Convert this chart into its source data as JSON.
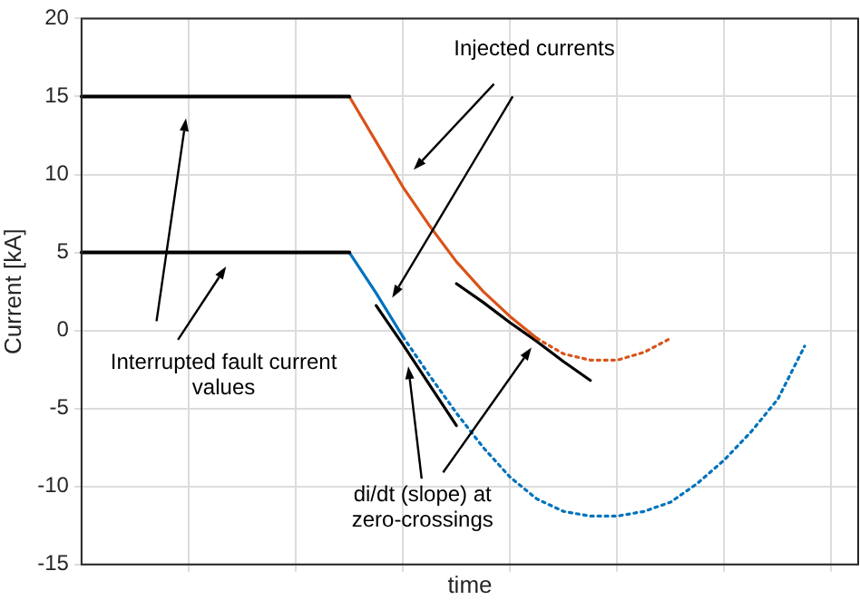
{
  "chart_data": {
    "type": "line",
    "xlabel": "time",
    "ylabel": "Current [kA]",
    "categories": [
      null,
      null,
      null,
      null,
      null,
      null,
      null,
      null,
      null,
      null,
      null,
      null,
      null,
      null,
      null,
      null,
      null,
      null,
      null,
      null,
      null,
      null,
      null,
      null,
      null,
      null,
      null,
      null,
      null,
      null
    ],
    "ylim": [
      -15,
      20
    ],
    "yticks": [
      -15,
      -10,
      -5,
      0,
      5,
      10,
      15,
      20
    ],
    "tick_labels": "y",
    "grid": true,
    "legend": false,
    "marker": "none",
    "series": [
      {
        "color": "#000000",
        "line_style": "solid",
        "values": [
          15,
          15,
          15,
          15,
          15,
          15,
          15,
          15,
          15,
          15,
          15,
          null,
          null,
          null,
          null,
          null,
          null,
          null,
          null,
          null,
          null,
          null,
          null,
          null,
          null,
          null,
          null,
          null,
          null,
          null
        ]
      },
      {
        "color": "#000000",
        "line_style": "solid",
        "values": [
          5,
          5,
          5,
          5,
          5,
          5,
          5,
          5,
          5,
          5,
          5,
          null,
          null,
          null,
          null,
          null,
          null,
          null,
          null,
          null,
          null,
          null,
          null,
          null,
          null,
          null,
          null,
          null,
          null,
          null
        ]
      },
      {
        "color": "#d95319",
        "line_style": "solid",
        "values": [
          null,
          null,
          null,
          null,
          null,
          null,
          null,
          null,
          null,
          null,
          15,
          12.1,
          9.2,
          6.7,
          4.4,
          2.5,
          0.9,
          -0.5,
          null,
          null,
          null,
          null,
          null,
          null,
          null,
          null,
          null,
          null,
          null,
          null
        ]
      },
      {
        "color": "#d95319",
        "line_style": "dotted",
        "values": [
          null,
          null,
          null,
          null,
          null,
          null,
          null,
          null,
          null,
          null,
          null,
          null,
          null,
          null,
          null,
          null,
          null,
          -0.5,
          -1.5,
          -1.9,
          -1.9,
          -1.4,
          -0.5,
          null,
          null,
          null,
          null,
          null,
          null,
          null
        ]
      },
      {
        "color": "#0072bd",
        "line_style": "solid",
        "values": [
          null,
          null,
          null,
          null,
          null,
          null,
          null,
          null,
          null,
          null,
          5,
          2.4,
          -0.4,
          null,
          null,
          null,
          null,
          null,
          null,
          null,
          null,
          null,
          null,
          null,
          null,
          null,
          null,
          null,
          null,
          null
        ]
      },
      {
        "color": "#0072bd",
        "line_style": "dotted",
        "values": [
          null,
          null,
          null,
          null,
          null,
          null,
          null,
          null,
          null,
          null,
          null,
          null,
          -0.4,
          -2.9,
          -5.3,
          -7.5,
          -9.4,
          -10.8,
          -11.6,
          -11.9,
          -11.9,
          -11.6,
          -11,
          -9.8,
          -8.3,
          -6.5,
          -4.4,
          -1,
          null,
          null
        ]
      },
      {
        "color": "#000000",
        "line_style": "solid",
        "values": [
          null,
          null,
          null,
          null,
          null,
          null,
          null,
          null,
          null,
          null,
          null,
          1.6,
          -0.9,
          -3.5,
          -6.1,
          null,
          null,
          null,
          null,
          null,
          null,
          null,
          null,
          null,
          null,
          null,
          null,
          null,
          null,
          null
        ]
      },
      {
        "color": "#000000",
        "line_style": "solid",
        "values": [
          null,
          null,
          null,
          null,
          null,
          null,
          null,
          null,
          null,
          null,
          null,
          null,
          null,
          null,
          3,
          1.8,
          0.5,
          -0.7,
          -2,
          -3.2,
          null,
          null,
          null,
          null,
          null,
          null,
          null,
          null,
          null,
          null
        ]
      }
    ],
    "annotations": [
      "Injected currents",
      "Interrupted fault current\nvalues",
      "di/dt (slope) at\nzero-crossings"
    ]
  }
}
